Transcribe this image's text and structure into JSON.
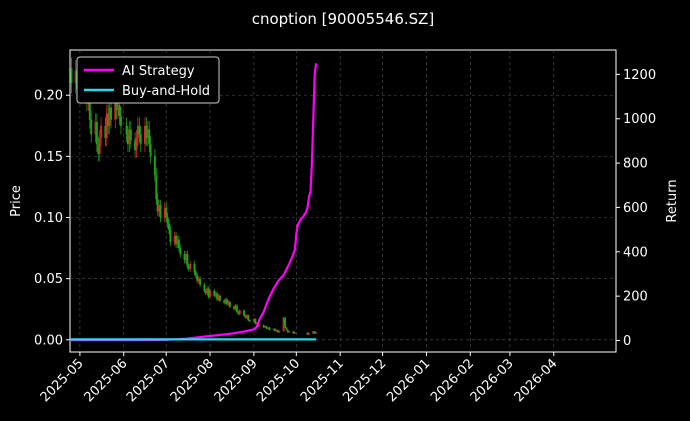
{
  "chart_data": {
    "type": "line",
    "title": "cnoption [90005546.SZ]",
    "x_axis": {
      "type": "date",
      "range": [
        "2025-04-24",
        "2026-05-15"
      ],
      "ticks": [
        "2025-05-01",
        "2025-06-01",
        "2025-07-01",
        "2025-08-01",
        "2025-09-01",
        "2025-10-01",
        "2025-11-01",
        "2025-12-01",
        "2026-01-01",
        "2026-02-01",
        "2026-03-01",
        "2026-04-01"
      ],
      "tick_labels": [
        "2025-05",
        "2025-06",
        "2025-07",
        "2025-08",
        "2025-09",
        "2025-10",
        "2025-11",
        "2025-12",
        "2026-01",
        "2026-02",
        "2026-03",
        "2026-04"
      ]
    },
    "y_left": {
      "label": "Price",
      "range": [
        -0.01,
        0.237
      ],
      "ticks": [
        0.0,
        0.05,
        0.1,
        0.15,
        0.2
      ],
      "tick_labels": [
        "0.00",
        "0.05",
        "0.10",
        "0.15",
        "0.20"
      ]
    },
    "y_right": {
      "label": "Return",
      "range": [
        -52,
        1310
      ],
      "ticks": [
        0,
        200,
        400,
        600,
        800,
        1000,
        1200
      ],
      "tick_labels": [
        "0",
        "200",
        "400",
        "600",
        "800",
        "1000",
        "1200"
      ]
    },
    "grid": true,
    "legend": {
      "position": "top-left",
      "entries": [
        "AI Strategy",
        "Buy-and-Hold"
      ]
    },
    "candles": {
      "up_color": "#d62728",
      "down_color": "#1aa31a",
      "points": [
        [
          "2025-04-25",
          0.222,
          0.21
        ],
        [
          "2025-04-28",
          0.21,
          0.22
        ],
        [
          "2025-04-29",
          0.22,
          0.205
        ],
        [
          "2025-04-30",
          0.205,
          0.212
        ],
        [
          "2025-05-06",
          0.212,
          0.195
        ],
        [
          "2025-05-07",
          0.195,
          0.2
        ],
        [
          "2025-05-08",
          0.2,
          0.18
        ],
        [
          "2025-05-09",
          0.18,
          0.168
        ],
        [
          "2025-05-12",
          0.168,
          0.178
        ],
        [
          "2025-05-13",
          0.178,
          0.16
        ],
        [
          "2025-05-14",
          0.16,
          0.152
        ],
        [
          "2025-05-15",
          0.152,
          0.165
        ],
        [
          "2025-05-16",
          0.165,
          0.175
        ],
        [
          "2025-05-19",
          0.175,
          0.165
        ],
        [
          "2025-05-20",
          0.165,
          0.185
        ],
        [
          "2025-05-21",
          0.185,
          0.175
        ],
        [
          "2025-05-22",
          0.175,
          0.19
        ],
        [
          "2025-05-23",
          0.19,
          0.18
        ],
        [
          "2025-05-26",
          0.18,
          0.195
        ],
        [
          "2025-05-27",
          0.195,
          0.188
        ],
        [
          "2025-05-28",
          0.188,
          0.192
        ],
        [
          "2025-05-29",
          0.192,
          0.183
        ],
        [
          "2025-05-30",
          0.183,
          0.175
        ],
        [
          "2025-06-03",
          0.175,
          0.168
        ],
        [
          "2025-06-04",
          0.168,
          0.16
        ],
        [
          "2025-06-05",
          0.16,
          0.172
        ],
        [
          "2025-06-06",
          0.172,
          0.163
        ],
        [
          "2025-06-09",
          0.163,
          0.155
        ],
        [
          "2025-06-10",
          0.155,
          0.165
        ],
        [
          "2025-06-11",
          0.165,
          0.175
        ],
        [
          "2025-06-12",
          0.175,
          0.168
        ],
        [
          "2025-06-13",
          0.168,
          0.16
        ],
        [
          "2025-06-16",
          0.16,
          0.175
        ],
        [
          "2025-06-17",
          0.175,
          0.165
        ],
        [
          "2025-06-18",
          0.165,
          0.172
        ],
        [
          "2025-06-19",
          0.172,
          0.16
        ],
        [
          "2025-06-20",
          0.16,
          0.15
        ],
        [
          "2025-06-23",
          0.15,
          0.135
        ],
        [
          "2025-06-24",
          0.135,
          0.115
        ],
        [
          "2025-06-25",
          0.115,
          0.105
        ],
        [
          "2025-06-26",
          0.105,
          0.11
        ],
        [
          "2025-06-27",
          0.11,
          0.1
        ],
        [
          "2025-06-30",
          0.1,
          0.108
        ],
        [
          "2025-07-01",
          0.108,
          0.1
        ],
        [
          "2025-07-02",
          0.1,
          0.095
        ],
        [
          "2025-07-03",
          0.095,
          0.09
        ],
        [
          "2025-07-04",
          0.09,
          0.08
        ],
        [
          "2025-07-07",
          0.08,
          0.085
        ],
        [
          "2025-07-08",
          0.085,
          0.078
        ],
        [
          "2025-07-09",
          0.078,
          0.082
        ],
        [
          "2025-07-10",
          0.082,
          0.075
        ],
        [
          "2025-07-11",
          0.075,
          0.07
        ],
        [
          "2025-07-14",
          0.07,
          0.065
        ],
        [
          "2025-07-15",
          0.065,
          0.07
        ],
        [
          "2025-07-16",
          0.07,
          0.06
        ],
        [
          "2025-07-17",
          0.06,
          0.058
        ],
        [
          "2025-07-18",
          0.058,
          0.062
        ],
        [
          "2025-07-21",
          0.062,
          0.055
        ],
        [
          "2025-07-22",
          0.055,
          0.052
        ],
        [
          "2025-07-23",
          0.052,
          0.048
        ],
        [
          "2025-07-24",
          0.048,
          0.05
        ],
        [
          "2025-07-25",
          0.05,
          0.045
        ],
        [
          "2025-07-28",
          0.045,
          0.04
        ],
        [
          "2025-07-29",
          0.04,
          0.038
        ],
        [
          "2025-07-30",
          0.038,
          0.042
        ],
        [
          "2025-07-31",
          0.042,
          0.035
        ],
        [
          "2025-08-01",
          0.035,
          0.04
        ],
        [
          "2025-08-04",
          0.04,
          0.036
        ],
        [
          "2025-08-05",
          0.036,
          0.038
        ],
        [
          "2025-08-06",
          0.038,
          0.033
        ],
        [
          "2025-08-07",
          0.033,
          0.036
        ],
        [
          "2025-08-08",
          0.036,
          0.032
        ],
        [
          "2025-08-11",
          0.032,
          0.03
        ],
        [
          "2025-08-12",
          0.03,
          0.033
        ],
        [
          "2025-08-13",
          0.033,
          0.029
        ],
        [
          "2025-08-14",
          0.029,
          0.031
        ],
        [
          "2025-08-15",
          0.031,
          0.027
        ],
        [
          "2025-08-18",
          0.027,
          0.025
        ],
        [
          "2025-08-19",
          0.025,
          0.028
        ],
        [
          "2025-08-20",
          0.028,
          0.023
        ],
        [
          "2025-08-21",
          0.023,
          0.021
        ],
        [
          "2025-08-22",
          0.021,
          0.024
        ],
        [
          "2025-08-25",
          0.024,
          0.02
        ],
        [
          "2025-08-26",
          0.02,
          0.018
        ],
        [
          "2025-08-27",
          0.018,
          0.02
        ],
        [
          "2025-08-28",
          0.02,
          0.016
        ],
        [
          "2025-08-29",
          0.016,
          0.015
        ],
        [
          "2025-09-01",
          0.015,
          0.017
        ],
        [
          "2025-09-02",
          0.017,
          0.013
        ],
        [
          "2025-09-03",
          0.013,
          0.014
        ],
        [
          "2025-09-04",
          0.014,
          0.011
        ],
        [
          "2025-09-05",
          0.011,
          0.012
        ],
        [
          "2025-09-08",
          0.012,
          0.01
        ],
        [
          "2025-09-09",
          0.01,
          0.011
        ],
        [
          "2025-09-10",
          0.011,
          0.009
        ],
        [
          "2025-09-11",
          0.009,
          0.01
        ],
        [
          "2025-09-12",
          0.01,
          0.008
        ],
        [
          "2025-09-15",
          0.008,
          0.009
        ],
        [
          "2025-09-16",
          0.009,
          0.007
        ],
        [
          "2025-09-17",
          0.007,
          0.008
        ],
        [
          "2025-09-18",
          0.008,
          0.006
        ],
        [
          "2025-09-19",
          0.006,
          0.007
        ],
        [
          "2025-09-22",
          0.007,
          0.018
        ],
        [
          "2025-09-23",
          0.018,
          0.01
        ],
        [
          "2025-09-24",
          0.01,
          0.008
        ],
        [
          "2025-09-25",
          0.008,
          0.006
        ],
        [
          "2025-09-26",
          0.006,
          0.007
        ],
        [
          "2025-09-29",
          0.007,
          0.005
        ],
        [
          "2025-09-30",
          0.005,
          0.006
        ],
        [
          "2025-10-09",
          0.006,
          0.004
        ],
        [
          "2025-10-10",
          0.004,
          0.005
        ],
        [
          "2025-10-13",
          0.005,
          0.007
        ],
        [
          "2025-10-14",
          0.007,
          0.005
        ],
        [
          "2025-10-15",
          0.005,
          0.006
        ]
      ]
    },
    "series": [
      {
        "name": "AI Strategy",
        "color": "#ff00ff",
        "points": [
          [
            "2025-04-24",
            1
          ],
          [
            "2025-05-15",
            1
          ],
          [
            "2025-06-01",
            1
          ],
          [
            "2025-06-20",
            2
          ],
          [
            "2025-07-01",
            3
          ],
          [
            "2025-07-15",
            8
          ],
          [
            "2025-08-01",
            20
          ],
          [
            "2025-08-15",
            30
          ],
          [
            "2025-08-25",
            40
          ],
          [
            "2025-09-01",
            50
          ],
          [
            "2025-09-03",
            60
          ],
          [
            "2025-09-05",
            95
          ],
          [
            "2025-09-08",
            130
          ],
          [
            "2025-09-10",
            165
          ],
          [
            "2025-09-12",
            195
          ],
          [
            "2025-09-15",
            235
          ],
          [
            "2025-09-17",
            255
          ],
          [
            "2025-09-19",
            275
          ],
          [
            "2025-09-22",
            295
          ],
          [
            "2025-09-24",
            320
          ],
          [
            "2025-09-26",
            345
          ],
          [
            "2025-09-28",
            375
          ],
          [
            "2025-09-30",
            410
          ],
          [
            "2025-10-01",
            480
          ],
          [
            "2025-10-02",
            520
          ],
          [
            "2025-10-04",
            545
          ],
          [
            "2025-10-06",
            560
          ],
          [
            "2025-10-08",
            580
          ],
          [
            "2025-10-09",
            600
          ],
          [
            "2025-10-10",
            650
          ],
          [
            "2025-10-11",
            670
          ],
          [
            "2025-10-12",
            800
          ],
          [
            "2025-10-13",
            1000
          ],
          [
            "2025-10-14",
            1200
          ],
          [
            "2025-10-15",
            1250
          ]
        ]
      },
      {
        "name": "Buy-and-Hold",
        "color": "#29d9e6",
        "points": [
          [
            "2025-04-24",
            5
          ],
          [
            "2025-10-15",
            5
          ]
        ]
      }
    ]
  }
}
